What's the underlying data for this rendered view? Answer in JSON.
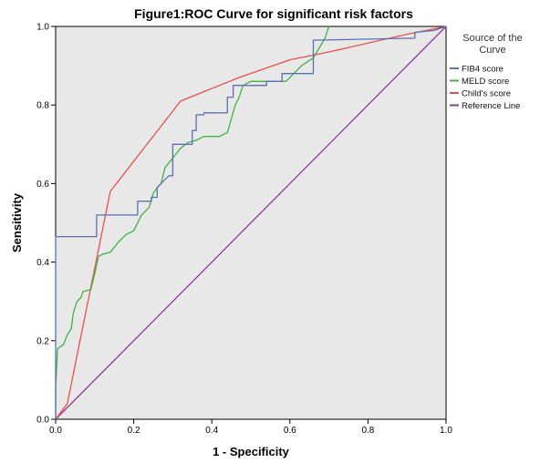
{
  "chart_data": {
    "type": "line",
    "title": "Figure1:ROC Curve for significant risk factors",
    "xlabel": "1 - Specificity",
    "ylabel": "Sensitivity",
    "xlim": [
      0,
      1
    ],
    "ylim": [
      0,
      1
    ],
    "x_ticks": [
      "0.0",
      "0.2",
      "0.4",
      "0.6",
      "0.8",
      "1.0"
    ],
    "y_ticks": [
      "0.0",
      "0.2",
      "0.4",
      "0.6",
      "0.8",
      "1.0"
    ],
    "grid": false,
    "plot_background": "#e8e8e8",
    "legend": {
      "title_line1": "Source of the",
      "title_line2": "Curve",
      "position": "right"
    },
    "series": [
      {
        "name": "FIB4 score",
        "color": "#5b6fb5",
        "points": [
          [
            0,
            0
          ],
          [
            0,
            0.465
          ],
          [
            0.105,
            0.465
          ],
          [
            0.105,
            0.52
          ],
          [
            0.21,
            0.52
          ],
          [
            0.21,
            0.555
          ],
          [
            0.245,
            0.555
          ],
          [
            0.245,
            0.565
          ],
          [
            0.26,
            0.565
          ],
          [
            0.26,
            0.59
          ],
          [
            0.29,
            0.62
          ],
          [
            0.3,
            0.62
          ],
          [
            0.3,
            0.7
          ],
          [
            0.35,
            0.7
          ],
          [
            0.35,
            0.735
          ],
          [
            0.36,
            0.735
          ],
          [
            0.36,
            0.775
          ],
          [
            0.38,
            0.775
          ],
          [
            0.38,
            0.78
          ],
          [
            0.44,
            0.78
          ],
          [
            0.44,
            0.82
          ],
          [
            0.455,
            0.82
          ],
          [
            0.455,
            0.85
          ],
          [
            0.54,
            0.85
          ],
          [
            0.54,
            0.86
          ],
          [
            0.58,
            0.86
          ],
          [
            0.58,
            0.88
          ],
          [
            0.66,
            0.88
          ],
          [
            0.66,
            0.965
          ],
          [
            0.92,
            0.97
          ],
          [
            0.92,
            0.985
          ],
          [
            0.97,
            0.99
          ],
          [
            1,
            1
          ]
        ]
      },
      {
        "name": "MELD score",
        "color": "#3fb23f",
        "points": [
          [
            0,
            0
          ],
          [
            0,
            0.08
          ],
          [
            0.005,
            0.18
          ],
          [
            0.02,
            0.19
          ],
          [
            0.03,
            0.215
          ],
          [
            0.04,
            0.23
          ],
          [
            0.045,
            0.27
          ],
          [
            0.055,
            0.3
          ],
          [
            0.065,
            0.31
          ],
          [
            0.07,
            0.325
          ],
          [
            0.09,
            0.33
          ],
          [
            0.1,
            0.37
          ],
          [
            0.11,
            0.415
          ],
          [
            0.12,
            0.42
          ],
          [
            0.14,
            0.425
          ],
          [
            0.16,
            0.45
          ],
          [
            0.18,
            0.47
          ],
          [
            0.2,
            0.48
          ],
          [
            0.22,
            0.52
          ],
          [
            0.24,
            0.54
          ],
          [
            0.25,
            0.575
          ],
          [
            0.26,
            0.59
          ],
          [
            0.27,
            0.6
          ],
          [
            0.28,
            0.64
          ],
          [
            0.3,
            0.665
          ],
          [
            0.32,
            0.69
          ],
          [
            0.34,
            0.705
          ],
          [
            0.36,
            0.71
          ],
          [
            0.38,
            0.72
          ],
          [
            0.42,
            0.72
          ],
          [
            0.44,
            0.73
          ],
          [
            0.46,
            0.8
          ],
          [
            0.47,
            0.82
          ],
          [
            0.48,
            0.85
          ],
          [
            0.5,
            0.86
          ],
          [
            0.59,
            0.86
          ],
          [
            0.63,
            0.9
          ],
          [
            0.66,
            0.92
          ],
          [
            0.69,
            0.97
          ],
          [
            0.7,
            1
          ]
        ]
      },
      {
        "name": "Child's score",
        "color": "#e8504a",
        "points": [
          [
            0,
            0
          ],
          [
            0.03,
            0.04
          ],
          [
            0.14,
            0.58
          ],
          [
            0.32,
            0.81
          ],
          [
            0.47,
            0.87
          ],
          [
            0.6,
            0.915
          ],
          [
            0.7,
            0.935
          ],
          [
            0.9,
            0.98
          ],
          [
            1,
            1
          ]
        ]
      },
      {
        "name": "Reference Line",
        "color": "#8a3b9a",
        "points": [
          [
            0,
            0
          ],
          [
            1,
            1
          ]
        ]
      }
    ]
  }
}
